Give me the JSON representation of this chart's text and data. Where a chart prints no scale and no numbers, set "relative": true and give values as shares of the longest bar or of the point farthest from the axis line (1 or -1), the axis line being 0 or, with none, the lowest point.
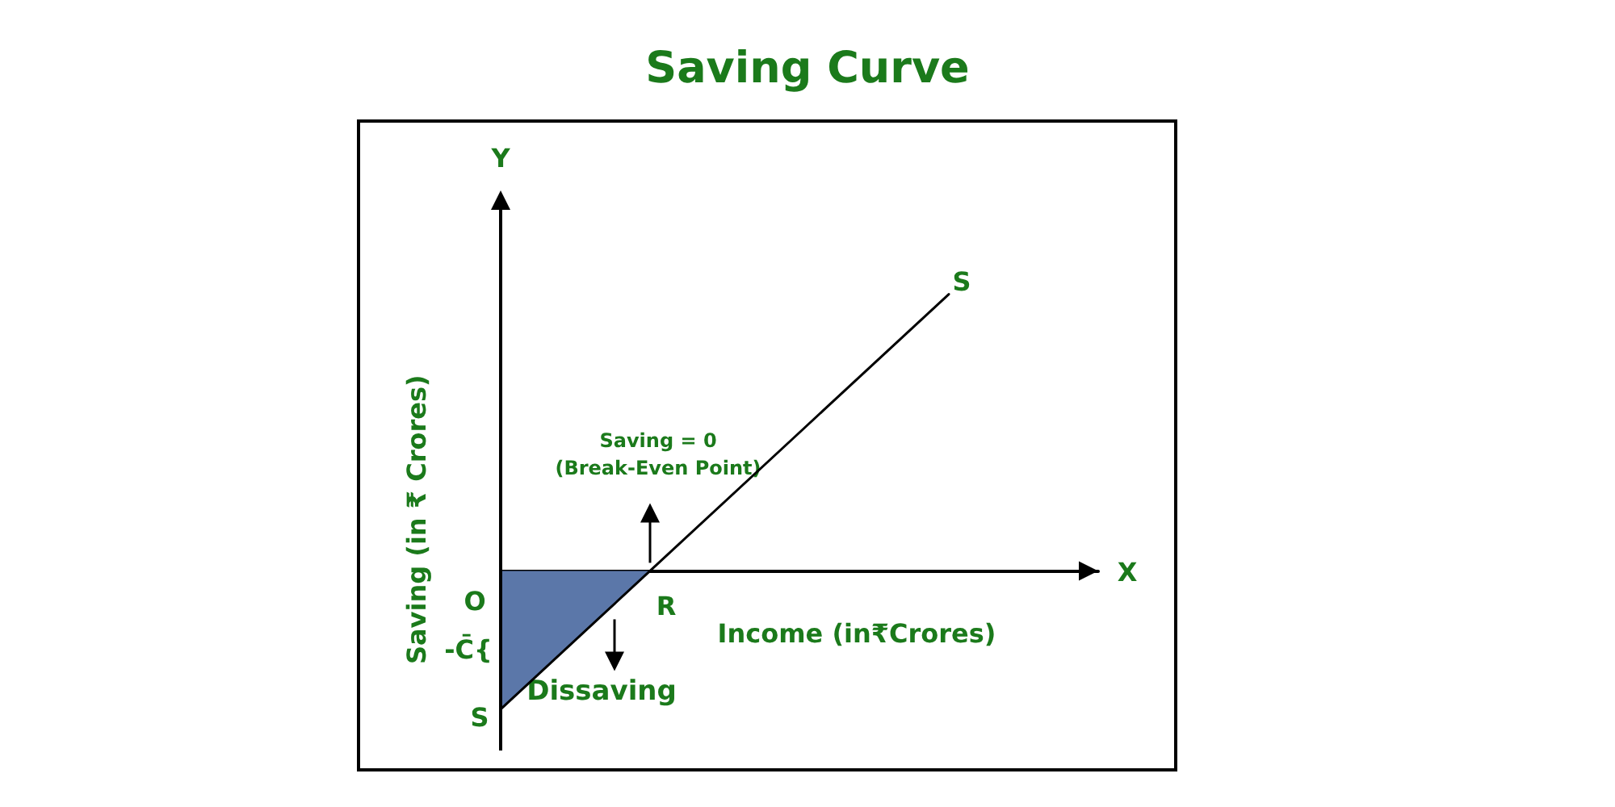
{
  "chart_data": {
    "type": "line",
    "title": "Saving Curve",
    "xlabel": "Income (in₹Crores)",
    "ylabel": "Saving (in ₹ Crores)",
    "categories": [
      null,
      null,
      null,
      null,
      null
    ],
    "relative": true,
    "marker": "none",
    "line_style": "solid",
    "series": [
      {
        "type": "area",
        "color": "#5b77a9",
        "values": [
          -0.5,
          0,
          null,
          null,
          null
        ]
      },
      {
        "type": "line",
        "color": "#000000",
        "values": [
          -0.5,
          0,
          0.5,
          1,
          null
        ]
      }
    ],
    "annotations": [
      "Saving = 0\n(Break-Even Point)",
      "Dissaving",
      "O",
      "R",
      "S",
      "S",
      "-C̄{",
      "X",
      "Y"
    ]
  }
}
